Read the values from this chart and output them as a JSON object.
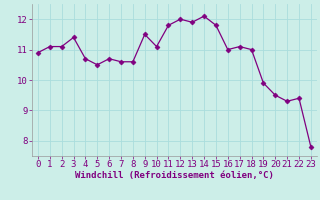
{
  "x": [
    0,
    1,
    2,
    3,
    4,
    5,
    6,
    7,
    8,
    9,
    10,
    11,
    12,
    13,
    14,
    15,
    16,
    17,
    18,
    19,
    20,
    21,
    22,
    23
  ],
  "y": [
    10.9,
    11.1,
    11.1,
    11.4,
    10.7,
    10.5,
    10.7,
    10.6,
    10.6,
    11.5,
    11.1,
    11.8,
    12.0,
    11.9,
    12.1,
    11.8,
    11.0,
    11.1,
    11.0,
    9.9,
    9.5,
    9.3,
    9.4,
    7.8
  ],
  "line_color": "#800080",
  "marker": "D",
  "marker_size": 2.5,
  "bg_color": "#cceee8",
  "grid_color": "#aadddd",
  "xlabel": "Windchill (Refroidissement éolien,°C)",
  "xlabel_color": "#800080",
  "tick_color": "#800080",
  "ylim": [
    7.5,
    12.5
  ],
  "yticks": [
    8,
    9,
    10,
    11,
    12
  ],
  "xticks": [
    0,
    1,
    2,
    3,
    4,
    5,
    6,
    7,
    8,
    9,
    10,
    11,
    12,
    13,
    14,
    15,
    16,
    17,
    18,
    19,
    20,
    21,
    22,
    23
  ],
  "xlabel_fontsize": 6.5,
  "tick_fontsize": 6.5
}
